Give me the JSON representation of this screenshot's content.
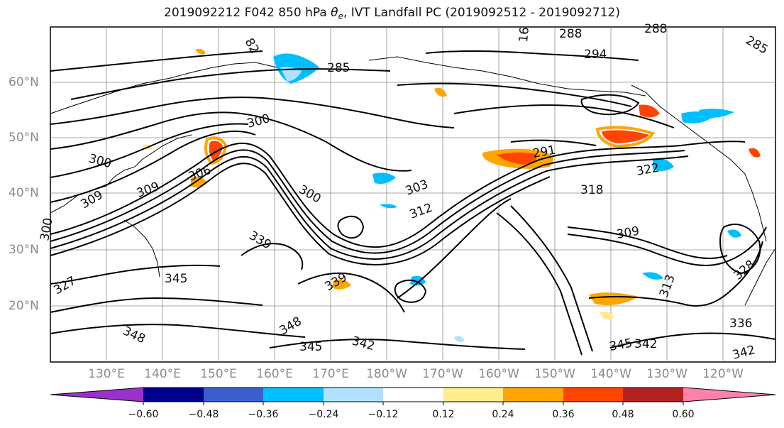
{
  "title": {
    "prefix": "2019092212 F042 850 hPa ",
    "symbol": "θ",
    "symbol_sub": "e",
    "suffix": ", IVT Landfall PC (2019092512 - 2019092712)"
  },
  "map": {
    "lat_labels": [
      "60°N",
      "50°N",
      "40°N",
      "30°N",
      "20°N"
    ],
    "lon_labels": [
      "130°E",
      "140°E",
      "150°E",
      "160°E",
      "170°E",
      "180°W",
      "170°W",
      "160°W",
      "150°W",
      "140°W",
      "130°W",
      "120°W"
    ],
    "contour_labels": [
      "82",
      "288",
      "288",
      "294",
      "285",
      "285",
      "300",
      "300",
      "309",
      "309",
      "300",
      "291",
      "322",
      "318",
      "306",
      "303",
      "312",
      "309",
      "300",
      "339",
      "345",
      "348",
      "348",
      "345",
      "342",
      "345",
      "342",
      "336",
      "342",
      "313",
      "327",
      "339",
      "328",
      "16"
    ]
  },
  "colorbar": {
    "colors": [
      "#9932CC",
      "#00008B",
      "#3A5FCD",
      "#00BFFF",
      "#B0E2FF",
      "#FFFFFF",
      "#FFEC8B",
      "#FFA500",
      "#FF4500",
      "#B22222",
      "#FF82AB"
    ],
    "ticks": [
      "−0.60",
      "−0.48",
      "−0.36",
      "−0.24",
      "−0.12",
      "0.12",
      "0.24",
      "0.36",
      "0.48",
      "0.60"
    ]
  }
}
